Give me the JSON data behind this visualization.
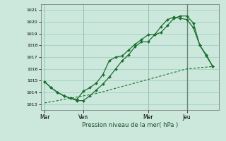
{
  "background_color": "#cce8dc",
  "grid_color": "#99ccbb",
  "line_color": "#1a6e2e",
  "title": "Pression niveau de la mer( hPa )",
  "ylim": [
    1012.5,
    1021.5
  ],
  "yticks": [
    1013,
    1014,
    1015,
    1016,
    1017,
    1018,
    1019,
    1020,
    1021
  ],
  "xtick_labels": [
    "Mar",
    "Ven",
    "Mer",
    "Jeu"
  ],
  "xtick_positions": [
    0,
    3,
    8,
    11
  ],
  "xlim": [
    -0.3,
    13.5
  ],
  "vline_positions": [
    0,
    3,
    8,
    11
  ],
  "series1_x": [
    0,
    0.5,
    1,
    1.5,
    2,
    2.5,
    3,
    3.5,
    4,
    4.5,
    5,
    5.5,
    6,
    6.5,
    7,
    7.5,
    8,
    8.5,
    9,
    9.5,
    10,
    10.5,
    11,
    11.5,
    12,
    12.5,
    13
  ],
  "series1_y": [
    1014.9,
    1014.4,
    1014.0,
    1013.7,
    1013.5,
    1013.4,
    1014.1,
    1014.4,
    1014.8,
    1015.5,
    1016.7,
    1017.0,
    1017.1,
    1017.6,
    1018.1,
    1018.5,
    1018.9,
    1018.9,
    1019.1,
    1019.7,
    1020.3,
    1020.5,
    1020.5,
    1019.9,
    1018.0,
    1017.2,
    1016.2
  ],
  "series2_x": [
    0,
    0.5,
    1,
    1.5,
    2,
    2.5,
    3,
    3.5,
    4,
    4.5,
    5,
    5.5,
    6,
    6.5,
    7,
    7.5,
    8,
    8.5,
    9,
    9.5,
    10,
    10.5,
    11,
    11.5,
    12,
    12.5,
    13
  ],
  "series2_y": [
    1014.9,
    1014.4,
    1014.0,
    1013.7,
    1013.5,
    1013.3,
    1013.3,
    1013.7,
    1014.2,
    1014.7,
    1015.3,
    1016.0,
    1016.7,
    1017.2,
    1017.9,
    1018.3,
    1018.3,
    1018.9,
    1019.6,
    1020.2,
    1020.4,
    1020.3,
    1020.2,
    1019.5,
    1018.0,
    1017.1,
    1016.2
  ],
  "series3_x": [
    0,
    1,
    2,
    3,
    4,
    5,
    6,
    7,
    8,
    9,
    10,
    11,
    12,
    13
  ],
  "series3_y": [
    1013.1,
    1013.3,
    1013.5,
    1013.7,
    1013.9,
    1014.2,
    1014.5,
    1014.8,
    1015.1,
    1015.4,
    1015.7,
    1016.0,
    1016.1,
    1016.2
  ]
}
